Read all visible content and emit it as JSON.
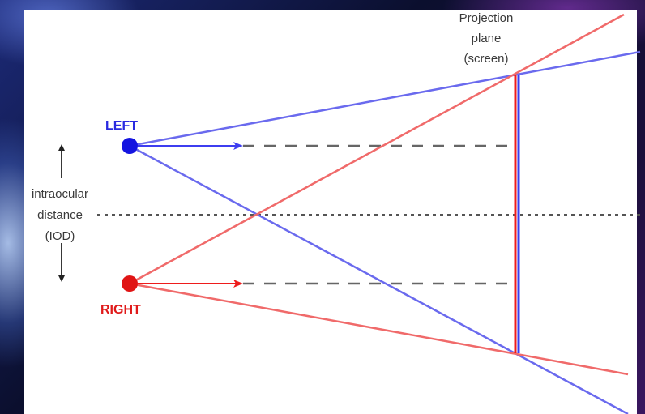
{
  "labels": {
    "left_eye": "LEFT",
    "right_eye": "RIGHT",
    "projection_line1": "Projection",
    "projection_line2": "plane",
    "projection_line3": "(screen)",
    "iod_line1": "intraocular",
    "iod_line2": "distance",
    "iod_line3": "(IOD)"
  },
  "colors": {
    "left": "#3d3df0",
    "right": "#ee1c1c",
    "left_rays": "#6a6aee",
    "right_rays": "#f06a6a",
    "guide": "#555555",
    "text": "#3a3a3a"
  }
}
